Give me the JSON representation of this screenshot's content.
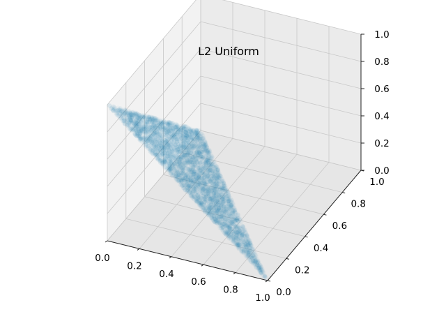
{
  "chart_data": {
    "type": "scatter",
    "projection": "3d",
    "title": "L2 Uniform",
    "xlabel": "",
    "ylabel": "",
    "zlabel": "",
    "xlim": [
      0,
      1
    ],
    "ylim": [
      0,
      1
    ],
    "zlim": [
      0,
      1
    ],
    "x_ticks": [
      "0.0",
      "0.2",
      "0.4",
      "0.6",
      "0.8",
      "1.0"
    ],
    "y_ticks": [
      "0.0",
      "0.2",
      "0.4",
      "0.6",
      "0.8",
      "1.0"
    ],
    "z_ticks": [
      "0.0",
      "0.2",
      "0.4",
      "0.6",
      "0.8",
      "1.0"
    ],
    "grid": true,
    "marker_color": "#1f77b4",
    "marker_alpha": 0.04,
    "series": [
      {
        "name": "points",
        "distribution": "uniform on simplex x + y + z = 1, x, y, z >= 0",
        "vertices": [
          {
            "x": 1,
            "y": 0,
            "z": 0
          },
          {
            "x": 0,
            "y": 1,
            "z": 0
          },
          {
            "x": 0,
            "y": 0,
            "z": 1
          }
        ],
        "approx_count": 5000
      }
    ],
    "pane_colors": {
      "x_pane": "#f2f2f2",
      "y_pane": "#ebebeb",
      "z_pane": "#e6e6e6",
      "grid": "#c8c8c8"
    }
  }
}
